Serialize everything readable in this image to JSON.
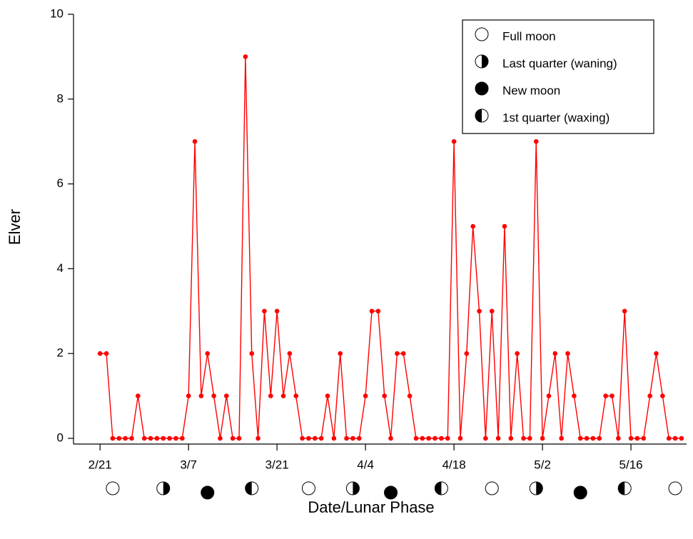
{
  "chart_data": {
    "type": "line",
    "xlabel": "Date/Lunar Phase",
    "ylabel": "Elver",
    "color": "#ff0000",
    "x": [
      0,
      1,
      2,
      3,
      4,
      5,
      6,
      7,
      8,
      9,
      10,
      11,
      12,
      13,
      14,
      15,
      16,
      17,
      18,
      19,
      20,
      21,
      22,
      23,
      24,
      25,
      26,
      27,
      28,
      29,
      30,
      31,
      32,
      33,
      34,
      35,
      36,
      37,
      38,
      39,
      40,
      41,
      42,
      43,
      44,
      45,
      46,
      47,
      48,
      49,
      50,
      51,
      52,
      53,
      54,
      55,
      56,
      57,
      58,
      59,
      60,
      61,
      62,
      63,
      64,
      65,
      66,
      67,
      68,
      69,
      70,
      71,
      72,
      73,
      74,
      75,
      76,
      77,
      78,
      79,
      80,
      81,
      82,
      83,
      84,
      85,
      86,
      87,
      88,
      89,
      90,
      91,
      92
    ],
    "values": [
      2,
      2,
      0,
      0,
      0,
      0,
      1,
      0,
      0,
      0,
      0,
      0,
      0,
      0,
      1,
      7,
      1,
      2,
      1,
      0,
      1,
      0,
      0,
      9,
      2,
      0,
      3,
      1,
      3,
      1,
      2,
      1,
      0,
      0,
      0,
      0,
      1,
      0,
      2,
      0,
      0,
      0,
      1,
      3,
      3,
      1,
      0,
      2,
      2,
      1,
      0,
      0,
      0,
      0,
      0,
      0,
      7,
      0,
      2,
      5,
      3,
      0,
      3,
      0,
      5,
      0,
      2,
      0,
      0,
      7,
      0,
      1,
      2,
      0,
      2,
      1,
      0,
      0,
      0,
      0,
      1,
      1,
      0,
      3,
      0,
      0,
      0,
      1,
      2,
      1,
      0,
      0,
      0
    ],
    "xlim": [
      -4.2,
      92.8
    ],
    "ylim": [
      0,
      10
    ],
    "xticks": [
      {
        "value": 0,
        "label": "2/21"
      },
      {
        "value": 14,
        "label": "3/7"
      },
      {
        "value": 28,
        "label": "3/21"
      },
      {
        "value": 42,
        "label": "4/4"
      },
      {
        "value": 56,
        "label": "4/18"
      },
      {
        "value": 70,
        "label": "5/2"
      },
      {
        "value": 84,
        "label": "5/16"
      }
    ],
    "yticks": [
      0,
      2,
      4,
      6,
      8,
      10
    ],
    "legend": [
      "Full moon",
      "Last quarter (waning)",
      "New moon",
      "1st quarter (waxing)"
    ],
    "legend_position": "upper right",
    "lunar_phases": {
      "x": [
        2,
        10,
        17,
        24,
        33,
        40,
        46,
        54,
        62,
        69,
        76,
        83,
        91
      ],
      "phase": [
        0,
        1,
        2,
        3,
        0,
        1,
        2,
        3,
        0,
        1,
        2,
        3,
        0
      ]
    }
  }
}
